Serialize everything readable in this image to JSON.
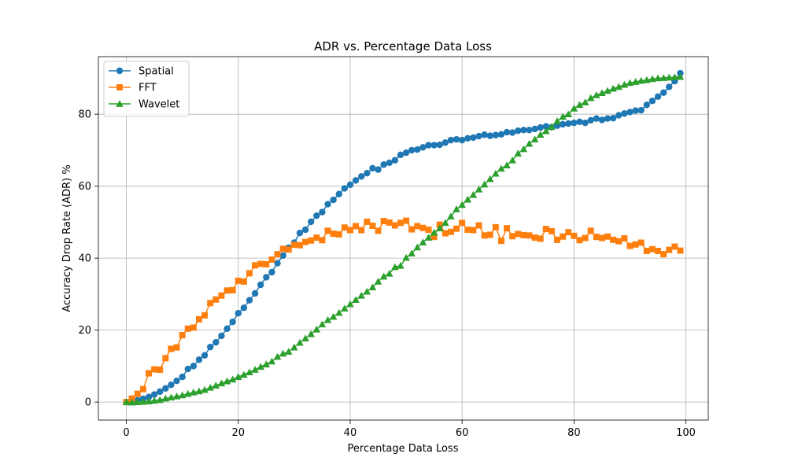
{
  "chart_data": {
    "type": "line",
    "title": "ADR vs. Percentage Data Loss",
    "xlabel": "Percentage Data Loss",
    "ylabel": "Accuracy Drop Rate (ADR) %",
    "xlim": [
      -5,
      104
    ],
    "ylim": [
      -5,
      96
    ],
    "xticks": [
      0,
      20,
      40,
      60,
      80,
      100
    ],
    "yticks": [
      0,
      20,
      40,
      60,
      80
    ],
    "grid": true,
    "legend_position": "top-left",
    "x": [
      0,
      1,
      2,
      3,
      4,
      5,
      6,
      7,
      8,
      9,
      10,
      11,
      12,
      13,
      14,
      15,
      16,
      17,
      18,
      19,
      20,
      21,
      22,
      23,
      24,
      25,
      26,
      27,
      28,
      29,
      30,
      31,
      32,
      33,
      34,
      35,
      36,
      37,
      38,
      39,
      40,
      41,
      42,
      43,
      44,
      45,
      46,
      47,
      48,
      49,
      50,
      51,
      52,
      53,
      54,
      55,
      56,
      57,
      58,
      59,
      60,
      61,
      62,
      63,
      64,
      65,
      66,
      67,
      68,
      69,
      70,
      71,
      72,
      73,
      74,
      75,
      76,
      77,
      78,
      79,
      80,
      81,
      82,
      83,
      84,
      85,
      86,
      87,
      88,
      89,
      90,
      91,
      92,
      93,
      94,
      95,
      96,
      97,
      98,
      99
    ],
    "series": [
      {
        "name": "Spatial",
        "color": "#1f77b4",
        "marker": "circle",
        "values": [
          0,
          0.2,
          0.5,
          0.9,
          1.4,
          2.1,
          2.9,
          3.8,
          4.8,
          5.9,
          7.0,
          9.2,
          10.0,
          11.8,
          13.0,
          15.3,
          16.6,
          18.4,
          20.4,
          22.3,
          24.7,
          26.2,
          28.3,
          30.2,
          32.6,
          34.7,
          36.1,
          38.6,
          40.7,
          42.9,
          44.3,
          47.0,
          47.9,
          50.1,
          51.8,
          52.8,
          55.0,
          56.2,
          57.8,
          59.4,
          60.4,
          61.6,
          62.7,
          63.6,
          65.0,
          64.6,
          66.0,
          66.5,
          67.2,
          68.7,
          69.3,
          70.0,
          70.2,
          70.8,
          71.4,
          71.4,
          71.5,
          72.1,
          72.8,
          73.0,
          72.8,
          73.3,
          73.5,
          73.9,
          74.3,
          74.0,
          74.2,
          74.4,
          75.0,
          74.9,
          75.4,
          75.6,
          75.6,
          75.9,
          76.3,
          76.6,
          76.4,
          76.8,
          77.2,
          77.4,
          77.6,
          77.9,
          77.6,
          78.3,
          78.8,
          78.4,
          78.8,
          78.9,
          79.7,
          80.2,
          80.6,
          81.0,
          81.1,
          82.6,
          83.7,
          84.9,
          86.0,
          87.6,
          89.2,
          91.4
        ]
      },
      {
        "name": "FFT",
        "color": "#ff7f0e",
        "marker": "square",
        "values": [
          0,
          1.0,
          2.3,
          3.6,
          8.0,
          9.1,
          9.0,
          12.2,
          14.8,
          15.2,
          18.6,
          20.4,
          20.7,
          23.0,
          24.1,
          27.5,
          28.5,
          29.6,
          31.0,
          31.1,
          33.7,
          33.5,
          35.8,
          38.0,
          38.4,
          38.3,
          39.6,
          41.1,
          42.6,
          42.4,
          43.7,
          43.6,
          44.5,
          44.9,
          45.7,
          45.0,
          47.6,
          46.8,
          46.6,
          48.5,
          47.8,
          48.9,
          47.8,
          50.1,
          49.0,
          47.6,
          50.3,
          49.9,
          49.1,
          49.8,
          50.4,
          48.0,
          48.9,
          48.4,
          47.9,
          45.9,
          49.3,
          46.9,
          47.3,
          48.2,
          49.8,
          47.9,
          47.8,
          49.1,
          46.3,
          46.5,
          48.6,
          44.8,
          48.3,
          46.1,
          46.7,
          46.4,
          46.3,
          45.7,
          45.4,
          48.1,
          47.5,
          45.1,
          46.0,
          47.2,
          46.2,
          45.0,
          45.6,
          47.6,
          45.9,
          45.6,
          46.0,
          45.1,
          44.7,
          45.5,
          43.4,
          43.8,
          44.3,
          42.0,
          42.5,
          42.0,
          41.1,
          42.3,
          43.2,
          42.1
        ]
      },
      {
        "name": "Wavelet",
        "color": "#2ca02c",
        "marker": "triangle",
        "values": [
          0,
          -0.1,
          0,
          0.1,
          0.2,
          0.4,
          0.6,
          1.0,
          1.3,
          1.6,
          1.9,
          2.3,
          2.7,
          3.0,
          3.4,
          4.0,
          4.6,
          5.2,
          5.8,
          6.3,
          7.0,
          7.6,
          8.3,
          9.0,
          9.8,
          10.5,
          11.3,
          12.6,
          13.5,
          14.0,
          15.2,
          16.5,
          17.7,
          18.9,
          20.2,
          21.6,
          22.8,
          23.7,
          24.8,
          26.0,
          27.2,
          28.4,
          29.6,
          30.7,
          31.9,
          33.5,
          34.9,
          35.7,
          37.5,
          37.9,
          40.1,
          41.3,
          43.0,
          44.4,
          45.7,
          47.1,
          48.3,
          49.8,
          51.6,
          53.6,
          54.8,
          56.3,
          57.6,
          59.1,
          60.5,
          62.0,
          63.5,
          64.9,
          65.8,
          67.2,
          69.1,
          70.3,
          71.8,
          73.0,
          74.3,
          75.3,
          76.5,
          78.1,
          79.3,
          80.0,
          81.6,
          82.6,
          83.3,
          84.5,
          85.3,
          85.9,
          86.5,
          87.1,
          87.6,
          88.2,
          88.7,
          89.0,
          89.3,
          89.5,
          89.8,
          90.0,
          90.1,
          90.2,
          90.3,
          90.4
        ]
      }
    ]
  }
}
